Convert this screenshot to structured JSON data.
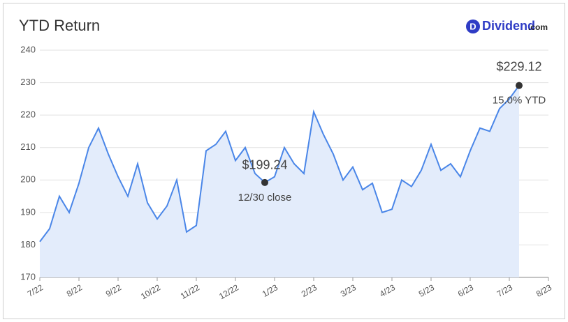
{
  "logo": {
    "name": "Dividend",
    "suffix": ".com"
  },
  "chart_data": {
    "type": "line",
    "title": "YTD Return",
    "categories": [
      "7/22",
      null,
      null,
      null,
      "8/22",
      null,
      null,
      null,
      "9/22",
      null,
      null,
      null,
      "10/22",
      null,
      null,
      null,
      "11/22",
      null,
      null,
      null,
      "12/22",
      null,
      null,
      null,
      "1/23",
      null,
      null,
      null,
      "2/23",
      null,
      null,
      null,
      "3/23",
      null,
      null,
      null,
      "4/23",
      null,
      null,
      null,
      "5/23",
      null,
      null,
      null,
      "6/23",
      null,
      null,
      null,
      "7/23",
      null,
      null,
      null,
      "8/23"
    ],
    "values": [
      181,
      185,
      195,
      190,
      199,
      210,
      216,
      208,
      201,
      195,
      205,
      193,
      188,
      192,
      200,
      184,
      186,
      209,
      211,
      215,
      206,
      210,
      202,
      199.24,
      201,
      210,
      205,
      202,
      221,
      214,
      208,
      200,
      204,
      197,
      199,
      190,
      191,
      200,
      198,
      203,
      211,
      203,
      205,
      201,
      209,
      216,
      215,
      222,
      225,
      229.12,
      null,
      null,
      null
    ],
    "value_labels": [
      null,
      null,
      null,
      null,
      null,
      null,
      null,
      null,
      null,
      null,
      null,
      null,
      null,
      null,
      null,
      null,
      null,
      null,
      null,
      null,
      null,
      null,
      null,
      "$199.24",
      null,
      null,
      null,
      null,
      null,
      null,
      null,
      null,
      null,
      null,
      null,
      null,
      null,
      null,
      null,
      null,
      null,
      null,
      null,
      null,
      null,
      null,
      null,
      null,
      null,
      "$229.12",
      null,
      null,
      null
    ],
    "notes": [
      null,
      null,
      null,
      null,
      null,
      null,
      null,
      null,
      null,
      null,
      null,
      null,
      null,
      null,
      null,
      null,
      null,
      null,
      null,
      null,
      null,
      null,
      null,
      "12/30 close",
      null,
      null,
      null,
      null,
      null,
      null,
      null,
      null,
      null,
      null,
      null,
      null,
      null,
      null,
      null,
      null,
      null,
      null,
      null,
      null,
      null,
      null,
      null,
      null,
      null,
      "15.0% YTD",
      null,
      null,
      null
    ],
    "color": "#4a86e8",
    "fill": "#e3ecfb",
    "ylim": [
      170,
      240
    ],
    "yticks": [
      170,
      180,
      190,
      200,
      210,
      220,
      230,
      240
    ],
    "grid": true
  }
}
